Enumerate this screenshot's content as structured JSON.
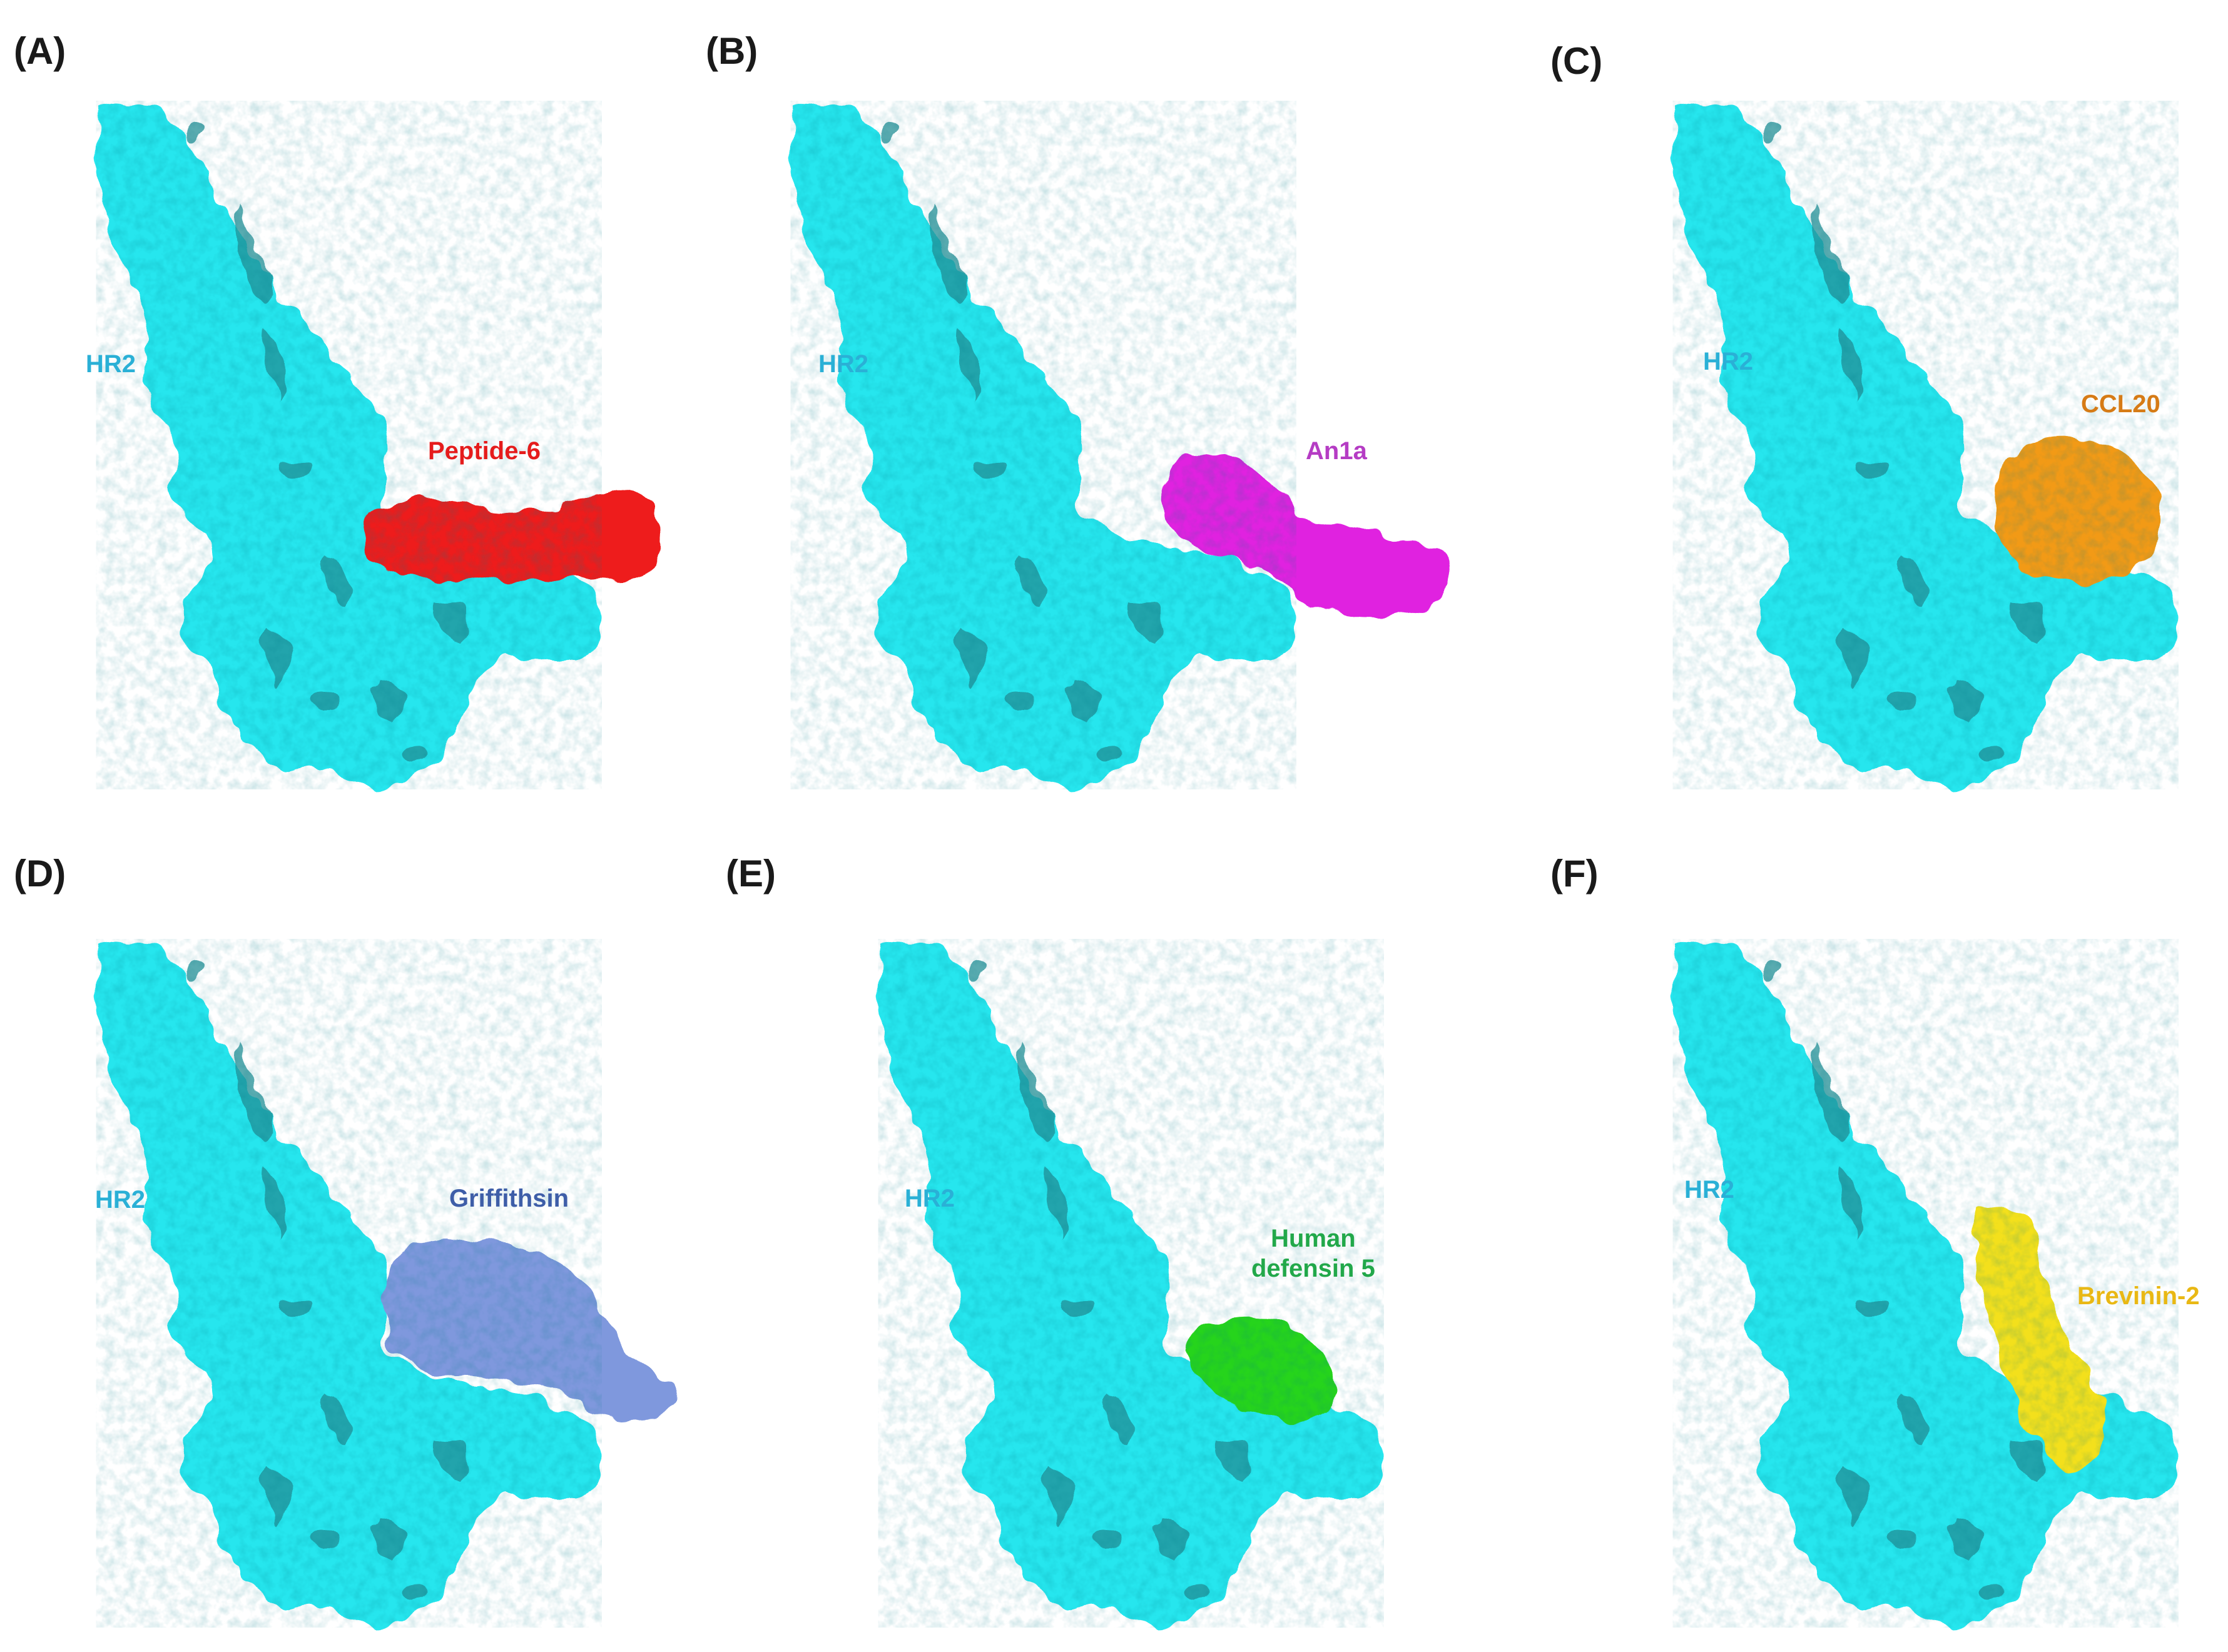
{
  "colors": {
    "hr2": "#25e6ee",
    "hr2_shadow": "#1f8f96",
    "hr2_label": "#2ab0d6",
    "peptide6": "#ee1b1b",
    "an1a": "#e020e0",
    "an1a_label": "#b53cc4",
    "ccl20": "#f29a12",
    "ccl20_label": "#d67b16",
    "griffithsin": "#7f98dd",
    "griffithsin_label": "#3e5ea8",
    "hd5": "#27d41c",
    "hd5_label": "#22a84a",
    "brevinin2": "#f3e01c",
    "brevinin2_label": "#e9b814",
    "letters": "#1a1a1a"
  },
  "panels": [
    {
      "id": "A",
      "letter": "(A)",
      "receptor_label": "HR2",
      "ligand_label": "Peptide-6"
    },
    {
      "id": "B",
      "letter": "(B)",
      "receptor_label": "HR2",
      "ligand_label": "An1a"
    },
    {
      "id": "C",
      "letter": "(C)",
      "receptor_label": "HR2",
      "ligand_label": "CCL20"
    },
    {
      "id": "D",
      "letter": "(D)",
      "receptor_label": "HR2",
      "ligand_label": "Griffithsin"
    },
    {
      "id": "E",
      "letter": "(E)",
      "receptor_label": "HR2",
      "ligand_label_line1": "Human",
      "ligand_label_line2": "defensin 5"
    },
    {
      "id": "F",
      "letter": "(F)",
      "receptor_label": "HR2",
      "ligand_label": "Brevinin-2"
    }
  ]
}
